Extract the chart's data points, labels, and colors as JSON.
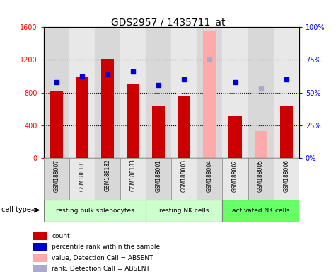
{
  "title": "GDS2957 / 1435711_at",
  "samples": [
    "GSM188007",
    "GSM188181",
    "GSM188182",
    "GSM188183",
    "GSM188001",
    "GSM188003",
    "GSM188004",
    "GSM188002",
    "GSM188005",
    "GSM188006"
  ],
  "bar_values": [
    820,
    1000,
    1210,
    900,
    640,
    760,
    1550,
    510,
    330,
    640
  ],
  "bar_absent": [
    false,
    false,
    false,
    false,
    false,
    false,
    true,
    false,
    true,
    false
  ],
  "percentile_values": [
    58,
    62,
    64,
    66,
    56,
    60,
    75,
    58,
    53,
    60
  ],
  "percentile_absent": [
    false,
    false,
    false,
    false,
    false,
    false,
    true,
    false,
    true,
    false
  ],
  "ylim_left": [
    0,
    1600
  ],
  "ylim_right": [
    0,
    100
  ],
  "yticks_left": [
    0,
    400,
    800,
    1200,
    1600
  ],
  "yticks_right": [
    0,
    25,
    50,
    75,
    100
  ],
  "ytick_labels_right": [
    "0%",
    "25%",
    "50%",
    "75%",
    "100%"
  ],
  "cell_types": [
    {
      "label": "resting bulk splenocytes",
      "start": 0,
      "end": 4,
      "color": "#ccffcc"
    },
    {
      "label": "resting NK cells",
      "start": 4,
      "end": 7,
      "color": "#ccffcc"
    },
    {
      "label": "activated NK cells",
      "start": 7,
      "end": 10,
      "color": "#66ff66"
    }
  ],
  "bar_color_present": "#cc0000",
  "bar_color_absent": "#ffaaaa",
  "dot_color_present": "#0000cc",
  "dot_color_absent": "#aaaacc",
  "bg_colors": [
    "#d8d8d8",
    "#e8e8e8"
  ],
  "cell_type_label": "cell type",
  "legend_items": [
    {
      "label": "count",
      "color": "#cc0000"
    },
    {
      "label": "percentile rank within the sample",
      "color": "#0000cc"
    },
    {
      "label": "value, Detection Call = ABSENT",
      "color": "#ffaaaa"
    },
    {
      "label": "rank, Detection Call = ABSENT",
      "color": "#aaaacc"
    }
  ]
}
